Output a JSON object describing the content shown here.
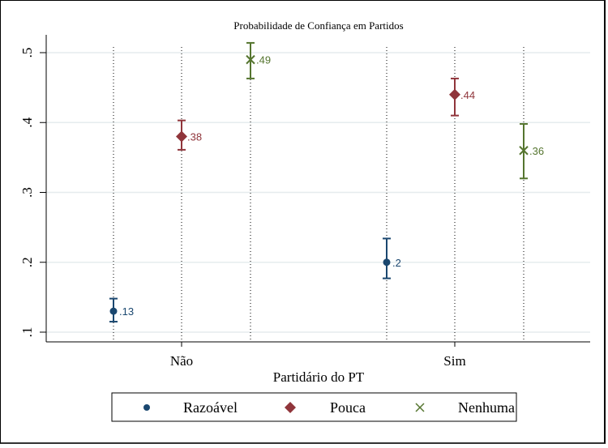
{
  "chart_data": {
    "type": "scatter",
    "title": "Probabilidade de Confiança em Partidos",
    "xlabel": "Partidário do PT",
    "ylabel": "",
    "categories": [
      "Não",
      "Sim"
    ],
    "ylim": [
      0.1,
      0.5
    ],
    "yticks": [
      0.1,
      0.2,
      0.3,
      0.4,
      0.5
    ],
    "ytick_labels": [
      ".1",
      ".2",
      ".3",
      ".4",
      ".5"
    ],
    "grid": true,
    "legend_position": "bottom",
    "series": [
      {
        "name": "Razoável",
        "marker": "circle",
        "color": "#1a476f",
        "values": [
          0.13,
          0.2
        ],
        "ci_low": [
          0.115,
          0.177
        ],
        "ci_high": [
          0.148,
          0.234
        ],
        "labels": [
          ".13",
          ".2"
        ]
      },
      {
        "name": "Pouca",
        "marker": "diamond",
        "color": "#90353b",
        "values": [
          0.38,
          0.44
        ],
        "ci_low": [
          0.361,
          0.41
        ],
        "ci_high": [
          0.403,
          0.463
        ],
        "labels": [
          ".38",
          ".44"
        ]
      },
      {
        "name": "Nenhuma",
        "marker": "x",
        "color": "#55752f",
        "values": [
          0.49,
          0.36
        ],
        "ci_low": [
          0.463,
          0.32
        ],
        "ci_high": [
          0.514,
          0.398
        ],
        "labels": [
          ".49",
          ".36"
        ]
      }
    ]
  }
}
